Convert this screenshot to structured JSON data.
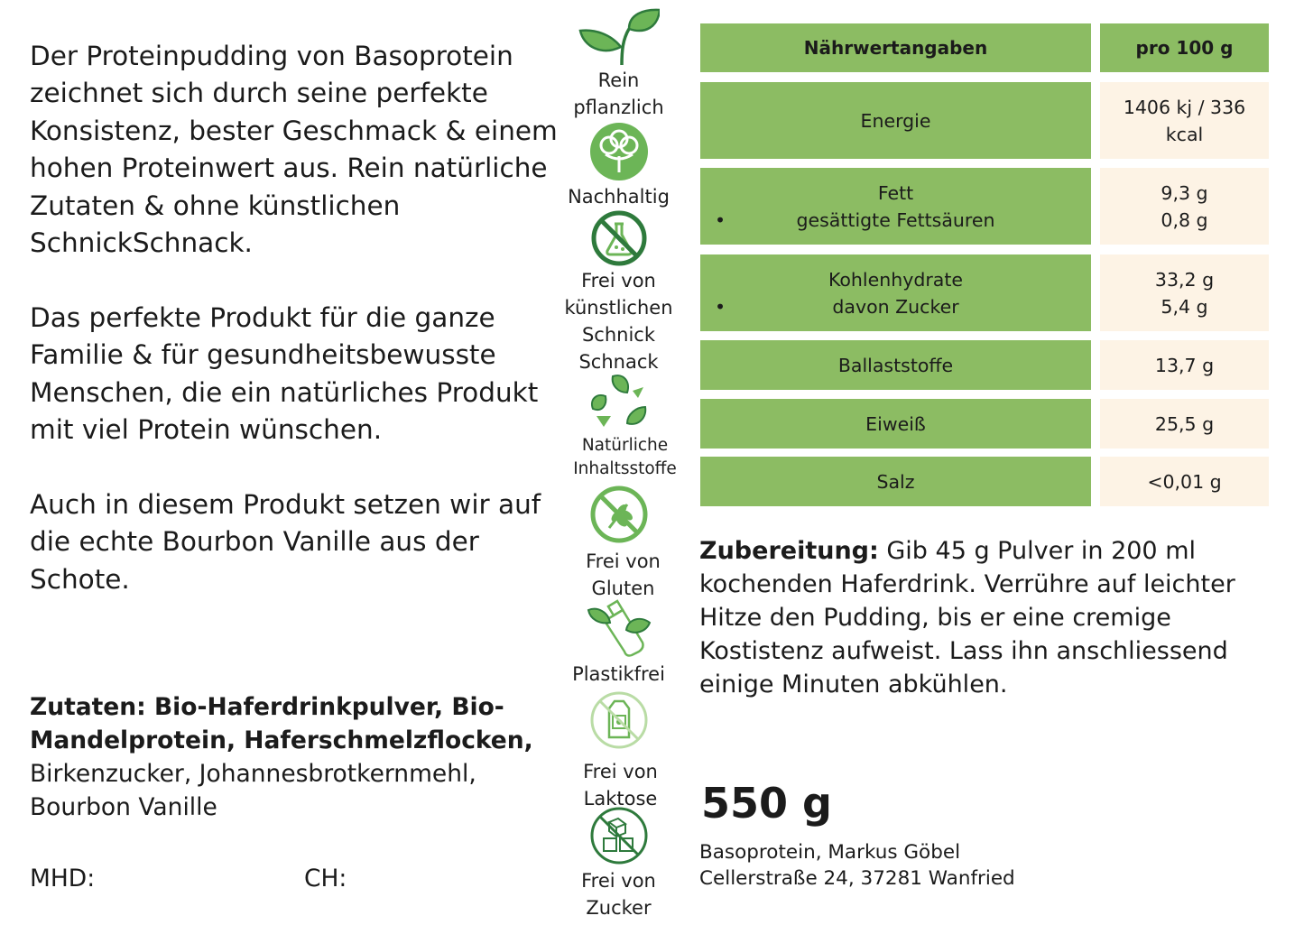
{
  "description": {
    "p1": "Der Proteinpudding von Basoprotein zeichnet sich durch seine perfekte Konsistenz, bester Geschmack & einem hohen Proteinwert aus. Rein natürliche Zutaten & ohne künstlichen SchnickSchnack.",
    "p2": "Das perfekte Produkt für die ganze Familie & für gesundheitsbewusste Menschen, die ein natürliches Produkt mit viel Protein wünschen.",
    "p3": "Auch in diesem Produkt setzen wir auf die echte Bourbon Vanille aus der Schote."
  },
  "ingredients": {
    "bold": "Zutaten: Bio-Haferdrinkpulver, Bio-Mandelprotein, Haferschmelzflocken,",
    "rest": "Birkenzucker, Johannesbrotkernmehl, Bourbon Vanille"
  },
  "mhd_label": "MHD:",
  "ch_label": "CH:",
  "badges": [
    {
      "icon": "sprout-icon",
      "label": "Rein\npflanzlich"
    },
    {
      "icon": "cotton-icon",
      "label": "Nachhaltig"
    },
    {
      "icon": "no-chemicals-icon",
      "label": "Frei von\nkünstlichen\nSchnick\nSchnack"
    },
    {
      "icon": "recycle-leaves-icon",
      "label": "Natürliche\nInhaltsstoffe"
    },
    {
      "icon": "no-gluten-icon",
      "label": "Frei von\nGluten"
    },
    {
      "icon": "plastic-free-icon",
      "label": "Plastikfrei"
    },
    {
      "icon": "no-lactose-icon",
      "label": "Frei von\nLaktose"
    },
    {
      "icon": "no-sugar-icon",
      "label": "Frei von\nZucker"
    }
  ],
  "nutrition": {
    "header_left": "Nährwertangaben",
    "header_right": "pro 100 g",
    "rows": [
      {
        "left": [
          "Energie"
        ],
        "right": [
          "1406 kj / 336",
          "kcal"
        ]
      },
      {
        "left": [
          "Fett",
          "gesättigte Fettsäuren"
        ],
        "right": [
          "9,3 g",
          "0,8 g"
        ]
      },
      {
        "left": [
          "Kohlenhydrate",
          "davon Zucker"
        ],
        "right": [
          "33,2 g",
          "5,4 g"
        ]
      },
      {
        "left": [
          "Ballaststoffe"
        ],
        "right": [
          "13,7 g"
        ]
      },
      {
        "left": [
          "Eiweiß"
        ],
        "right": [
          "25,5 g"
        ]
      },
      {
        "left": [
          "Salz"
        ],
        "right": [
          "<0,01 g"
        ]
      }
    ]
  },
  "preparation": {
    "label": "Zubereitung:",
    "text": " Gib 45 g Pulver in 200 ml kochenden Haferdrink. Verrühre auf leichter Hitze den Pudding, bis er eine cremige Kostistenz aufweist. Lass ihn anschliessend einige Minuten abkühlen."
  },
  "weight": "550 g",
  "company": {
    "line1": "Basoprotein, Markus Göbel",
    "line2": "Cellerstraße 24, 37281 Wanfried"
  },
  "colors": {
    "table_green": "#8cbc63",
    "table_cream": "#fdf3e5",
    "icon_dark_green": "#2e7a3c",
    "icon_light_green": "#6cb557"
  }
}
